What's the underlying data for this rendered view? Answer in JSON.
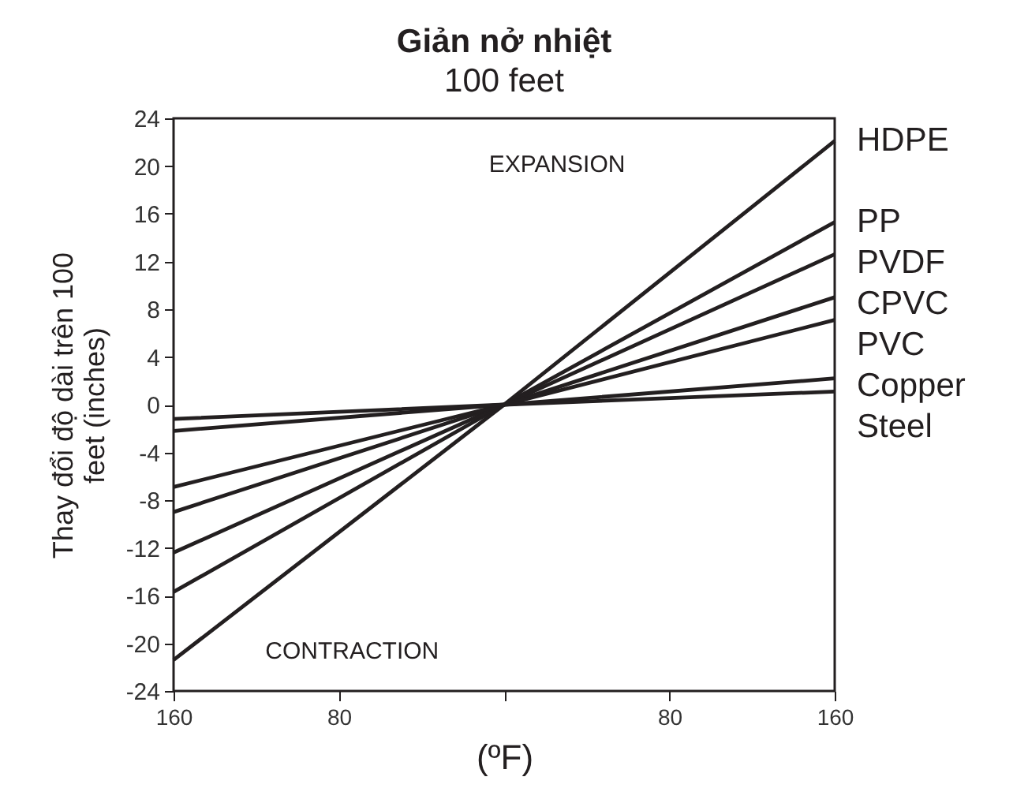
{
  "chart_data": {
    "type": "line",
    "title": "Giản nở nhiệt",
    "subtitle": "100 feet",
    "xlabel": "(ºF)",
    "ylabel": "Thay đổi độ dài trên 100 feet (inches)",
    "x": [
      -160,
      0,
      160
    ],
    "series": [
      {
        "name": "HDPE",
        "color": "#231f20",
        "values": [
          -21.4,
          0,
          22.1
        ]
      },
      {
        "name": "PP",
        "color": "#231f20",
        "values": [
          -15.7,
          0,
          15.3
        ]
      },
      {
        "name": "PVDF",
        "color": "#231f20",
        "values": [
          -12.4,
          0,
          12.6
        ]
      },
      {
        "name": "CPVC",
        "color": "#231f20",
        "values": [
          -9.0,
          0,
          9.0
        ]
      },
      {
        "name": "PVC",
        "color": "#231f20",
        "values": [
          -6.9,
          0,
          7.1
        ]
      },
      {
        "name": "Copper",
        "color": "#231f20",
        "values": [
          -2.2,
          0,
          2.2
        ]
      },
      {
        "name": "Steel",
        "color": "#231f20",
        "values": [
          -1.2,
          0,
          1.1
        ]
      }
    ],
    "xlim": [
      -160,
      160
    ],
    "xticks": [
      {
        "value": -160,
        "label": "160"
      },
      {
        "value": -80,
        "label": "80"
      },
      {
        "value": 0,
        "label": null
      },
      80,
      160
    ],
    "ylim": [
      -24,
      24
    ],
    "yticks": [
      -24,
      -20,
      -16,
      -12,
      -8,
      -4,
      0,
      4,
      8,
      12,
      16,
      20,
      24
    ],
    "annotations": [
      "EXPANSION",
      "CONTRACTION"
    ],
    "marker": "none",
    "line_style": "solid"
  }
}
